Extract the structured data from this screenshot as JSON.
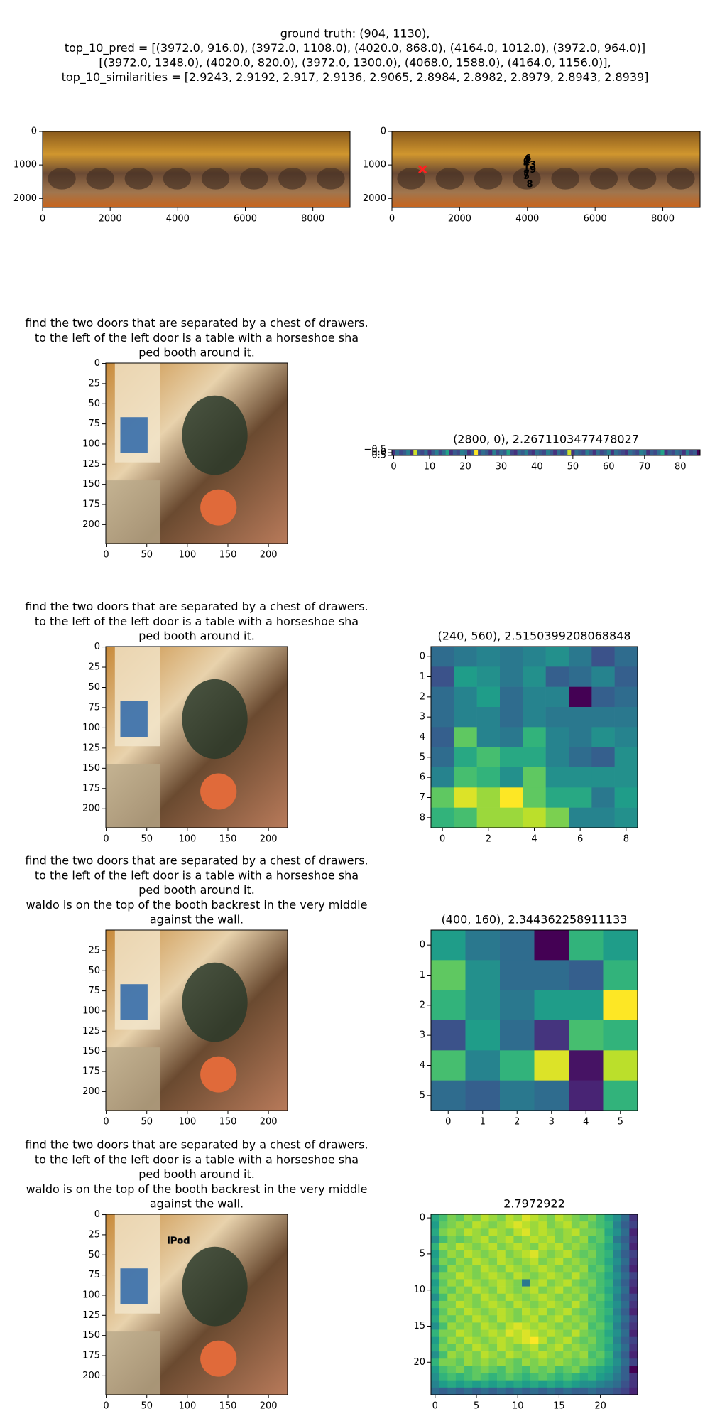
{
  "figure": {
    "title_lines": [
      "ground truth: (904, 1130),",
      "top_10_pred = [(3972.0, 916.0), (3972.0, 1108.0), (4020.0, 868.0), (4164.0, 1012.0), (3972.0, 964.0)]",
      "[(3972.0, 1348.0), (4020.0, 820.0), (3972.0, 1300.0), (4068.0, 1588.0), (4164.0, 1156.0)],",
      "top_10_similarities = [2.9243, 2.9192, 2.917, 2.9136, 2.9065, 2.8984, 2.8982, 2.8979, 2.8943, 2.8939]"
    ]
  },
  "chart_data": [
    {
      "type": "image",
      "xlim": [
        0,
        9100
      ],
      "ylim": [
        2270,
        0
      ],
      "xticks": [
        0,
        2000,
        4000,
        6000,
        8000
      ],
      "yticks": [
        0,
        1000,
        2000
      ]
    },
    {
      "type": "image",
      "xlim": [
        0,
        9100
      ],
      "ylim": [
        2270,
        0
      ],
      "xticks": [
        0,
        2000,
        4000,
        6000,
        8000
      ],
      "yticks": [
        0,
        1000,
        2000
      ],
      "points": {
        "x": [
          3972,
          3972,
          4020,
          4164,
          3972,
          3972,
          4020,
          3972,
          4068,
          4164
        ],
        "y": [
          916,
          1108,
          868,
          1012,
          964,
          1348,
          820,
          1300,
          1588,
          1156
        ],
        "labels": [
          "0",
          "1",
          "2",
          "3",
          "4",
          "5",
          "6",
          "7",
          "8",
          "9"
        ],
        "colors": [
          "#ff3030",
          "#ff9900",
          "#3060ff",
          "#00c0ff",
          "#30ff90",
          "#ff8000",
          "#40ffff",
          "#c8ff00",
          "#ff40c0",
          "#00e0ff"
        ]
      },
      "ground_truth": {
        "x": 904,
        "y": 1130,
        "color": "#ff2020"
      }
    },
    {
      "type": "image",
      "title_lines": [
        "find the two doors that are separated by a chest of drawers.",
        "to the left of the left door is a table with a horseshoe sha",
        "ped booth around it."
      ],
      "xlim": [
        -0.5,
        223.5
      ],
      "ylim": [
        223.5,
        -0.5
      ],
      "xticks": [
        0,
        50,
        100,
        150,
        200
      ],
      "yticks": [
        0,
        25,
        50,
        75,
        100,
        125,
        150,
        175,
        200
      ]
    },
    {
      "type": "heatmap",
      "cmap": "viridis",
      "title_lines": [
        "(2800, 0), 2.2671103477478027"
      ],
      "xlim": [
        -0.5,
        85.5
      ],
      "ylim": [
        0.5,
        -0.5
      ],
      "xticks": [
        0,
        10,
        20,
        30,
        40,
        50,
        60,
        70,
        80
      ],
      "yticks": [
        {
          "value": -0.5,
          "label": "−0.5"
        },
        {
          "value": 0,
          "label": "0.0"
        },
        0.5
      ],
      "values": [
        [
          0.3,
          0.45,
          0.35,
          0.4,
          0.5,
          0.3,
          0.85,
          0.4,
          0.35,
          0.45,
          0.3,
          0.4,
          0.5,
          0.35,
          0.45,
          0.6,
          0.3,
          0.4,
          0.35,
          0.5,
          0.45,
          0.3,
          0.4,
          0.9,
          0.35,
          0.45,
          0.4,
          0.3,
          0.5,
          0.35,
          0.45,
          0.4,
          0.6,
          0.35,
          0.3,
          0.45,
          0.4,
          0.5,
          0.35,
          0.3,
          0.45,
          0.4,
          0.35,
          0.5,
          0.4,
          0.3,
          0.45,
          0.35,
          0.4,
          0.85,
          0.3,
          0.45,
          0.4,
          0.35,
          0.5,
          0.4,
          0.3,
          0.45,
          0.35,
          0.4,
          0.5,
          0.3,
          0.45,
          0.4,
          0.35,
          0.3,
          0.45,
          0.4,
          0.35,
          0.5,
          0.45,
          0.3,
          0.4,
          0.35,
          0.45,
          0.6,
          0.3,
          0.4,
          0.35,
          0.45,
          0.4,
          0.3,
          0.5,
          0.35,
          0.4,
          0.2
        ]
      ]
    },
    {
      "type": "image",
      "title_lines": [
        "find the two doors that are separated by a chest of drawers.",
        "to the left of the left door is a table with a horseshoe sha",
        "ped booth around it."
      ],
      "xlim": [
        -0.5,
        223.5
      ],
      "ylim": [
        223.5,
        -0.5
      ],
      "xticks": [
        0,
        50,
        100,
        150,
        200
      ],
      "yticks": [
        0,
        25,
        50,
        75,
        100,
        125,
        150,
        175,
        200
      ]
    },
    {
      "type": "heatmap",
      "cmap": "viridis",
      "title_lines": [
        "(240, 560), 2.5150399208068848"
      ],
      "xlim": [
        -0.5,
        8.5
      ],
      "ylim": [
        8.5,
        -0.5
      ],
      "xticks": [
        0,
        2,
        4,
        6,
        8
      ],
      "yticks": [
        0,
        1,
        2,
        3,
        4,
        5,
        6,
        7,
        8
      ],
      "values": [
        [
          0.35,
          0.4,
          0.45,
          0.4,
          0.45,
          0.5,
          0.4,
          0.25,
          0.35
        ],
        [
          0.25,
          0.55,
          0.5,
          0.4,
          0.5,
          0.3,
          0.35,
          0.45,
          0.3
        ],
        [
          0.35,
          0.45,
          0.55,
          0.35,
          0.45,
          0.45,
          0,
          0.3,
          0.35
        ],
        [
          0.35,
          0.45,
          0.45,
          0.35,
          0.45,
          0.4,
          0.4,
          0.4,
          0.4
        ],
        [
          0.3,
          0.75,
          0.45,
          0.4,
          0.65,
          0.45,
          0.4,
          0.5,
          0.45
        ],
        [
          0.35,
          0.6,
          0.7,
          0.6,
          0.6,
          0.45,
          0.35,
          0.3,
          0.5
        ],
        [
          0.45,
          0.7,
          0.65,
          0.5,
          0.75,
          0.5,
          0.5,
          0.5,
          0.5
        ],
        [
          0.75,
          0.95,
          0.85,
          1,
          0.75,
          0.6,
          0.6,
          0.4,
          0.55
        ],
        [
          0.65,
          0.7,
          0.85,
          0.85,
          0.9,
          0.8,
          0.45,
          0.45,
          0.5
        ]
      ]
    },
    {
      "type": "image",
      "title_lines": [
        "find the two doors that are separated by a chest of drawers.",
        "to the left of the left door is a table with a horseshoe sha",
        "ped booth around it.",
        "waldo is on the top of the booth backrest in the very middle",
        "against the wall."
      ],
      "xlim": [
        -0.5,
        223.5
      ],
      "ylim": [
        223.5,
        -0.5
      ],
      "xticks": [
        0,
        50,
        100,
        150,
        200
      ],
      "yticks": [
        25,
        50,
        75,
        100,
        125,
        150,
        175,
        200
      ]
    },
    {
      "type": "heatmap",
      "cmap": "viridis",
      "title_lines": [
        "(400, 160), 2.344362258911133"
      ],
      "xlim": [
        -0.5,
        5.5
      ],
      "ylim": [
        5.5,
        -0.5
      ],
      "xticks": [
        0,
        1,
        2,
        3,
        4,
        5
      ],
      "yticks": [
        0,
        1,
        2,
        3,
        4,
        5
      ],
      "values": [
        [
          0.55,
          0.4,
          0.35,
          0,
          0.65,
          0.55
        ],
        [
          0.75,
          0.5,
          0.35,
          0.35,
          0.3,
          0.65
        ],
        [
          0.65,
          0.5,
          0.4,
          0.55,
          0.55,
          1
        ],
        [
          0.25,
          0.55,
          0.35,
          0.15,
          0.7,
          0.65
        ],
        [
          0.7,
          0.45,
          0.65,
          0.95,
          0.05,
          0.9
        ],
        [
          0.35,
          0.3,
          0.4,
          0.35,
          0.1,
          0.65
        ]
      ]
    },
    {
      "type": "image",
      "title_lines": [
        "find the two doors that are separated by a chest of drawers.",
        "to the left of the left door is a table with a horseshoe sha",
        "ped booth around it.",
        "waldo is on the top of the booth backrest in the very middle",
        "against the wall."
      ],
      "overlay_text": "iPod",
      "xlim": [
        -0.5,
        223.5
      ],
      "ylim": [
        223.5,
        -0.5
      ],
      "xticks": [
        0,
        50,
        100,
        150,
        200
      ],
      "yticks": [
        0,
        25,
        50,
        75,
        100,
        125,
        150,
        175,
        200
      ]
    },
    {
      "type": "heatmap",
      "cmap": "viridis",
      "title_lines": [
        "2.7972922"
      ],
      "xlim": [
        -0.5,
        24.5
      ],
      "ylim": [
        24.5,
        -0.5
      ],
      "xticks": [
        0,
        5,
        10,
        15,
        20
      ],
      "yticks": [
        0,
        5,
        10,
        15,
        20
      ],
      "values": [
        [
          0.6,
          0.7,
          0.8,
          0.75,
          0.85,
          0.8,
          0.9,
          0.85,
          0.8,
          0.9,
          0.85,
          0.95,
          0.9,
          0.85,
          0.8,
          0.9,
          0.85,
          0.8,
          0.75,
          0.8,
          0.7,
          0.6,
          0.5,
          0.35,
          0.15
        ],
        [
          0.55,
          0.75,
          0.8,
          0.85,
          0.8,
          0.9,
          0.85,
          0.8,
          0.85,
          0.9,
          0.95,
          0.9,
          0.85,
          0.9,
          0.8,
          0.85,
          0.9,
          0.8,
          0.85,
          0.75,
          0.7,
          0.65,
          0.45,
          0.3,
          0.2
        ],
        [
          0.6,
          0.8,
          0.85,
          0.8,
          0.9,
          0.85,
          0.8,
          0.9,
          0.85,
          0.8,
          0.9,
          0.95,
          0.85,
          0.9,
          0.85,
          0.8,
          0.85,
          0.9,
          0.8,
          0.8,
          0.75,
          0.6,
          0.5,
          0.35,
          0.1
        ],
        [
          0.5,
          0.7,
          0.8,
          0.75,
          0.8,
          0.85,
          0.9,
          0.8,
          0.85,
          0.9,
          0.8,
          0.85,
          0.9,
          0.85,
          0.9,
          0.8,
          0.85,
          0.8,
          0.85,
          0.7,
          0.75,
          0.65,
          0.4,
          0.3,
          0.15
        ],
        [
          0.65,
          0.85,
          0.8,
          0.9,
          0.85,
          0.8,
          0.85,
          0.9,
          0.8,
          0.85,
          0.9,
          0.85,
          0.8,
          0.9,
          0.85,
          0.9,
          0.8,
          0.85,
          0.8,
          0.75,
          0.7,
          0.6,
          0.5,
          0.35,
          0.1
        ],
        [
          0.55,
          0.75,
          0.85,
          0.8,
          0.9,
          0.85,
          0.8,
          0.85,
          0.9,
          0.8,
          0.85,
          0.9,
          0.95,
          0.85,
          0.8,
          0.85,
          0.9,
          0.8,
          0.75,
          0.8,
          0.7,
          0.65,
          0.45,
          0.3,
          0.2
        ],
        [
          0.6,
          0.8,
          0.75,
          0.85,
          0.8,
          0.9,
          0.85,
          0.8,
          0.9,
          0.85,
          0.8,
          0.85,
          0.9,
          0.8,
          0.85,
          0.9,
          0.8,
          0.85,
          0.8,
          0.75,
          0.7,
          0.6,
          0.5,
          0.35,
          0.15
        ],
        [
          0.5,
          0.7,
          0.85,
          0.8,
          0.85,
          0.8,
          0.9,
          0.85,
          0.8,
          0.9,
          0.85,
          0.8,
          0.85,
          0.9,
          0.85,
          0.8,
          0.85,
          0.8,
          0.85,
          0.7,
          0.75,
          0.65,
          0.45,
          0.3,
          0.1
        ],
        [
          0.65,
          0.8,
          0.8,
          0.9,
          0.85,
          0.8,
          0.85,
          0.9,
          0.85,
          0.8,
          0.9,
          0.85,
          0.8,
          0.85,
          0.9,
          0.85,
          0.8,
          0.9,
          0.8,
          0.75,
          0.7,
          0.6,
          0.5,
          0.35,
          0.2
        ],
        [
          0.55,
          0.75,
          0.85,
          0.8,
          0.9,
          0.85,
          0.8,
          0.85,
          0.9,
          0.85,
          0.8,
          0.4,
          0.85,
          0.9,
          0.8,
          0.85,
          0.9,
          0.8,
          0.75,
          0.8,
          0.7,
          0.65,
          0.45,
          0.3,
          0.15
        ],
        [
          0.6,
          0.8,
          0.75,
          0.85,
          0.8,
          0.9,
          0.85,
          0.8,
          0.9,
          0.85,
          0.8,
          0.85,
          0.9,
          0.8,
          0.85,
          0.9,
          0.8,
          0.85,
          0.8,
          0.75,
          0.7,
          0.6,
          0.5,
          0.35,
          0.1
        ],
        [
          0.5,
          0.7,
          0.85,
          0.8,
          0.85,
          0.8,
          0.9,
          0.85,
          0.8,
          0.9,
          0.85,
          0.8,
          0.85,
          0.9,
          0.85,
          0.8,
          0.85,
          0.8,
          0.85,
          0.7,
          0.75,
          0.65,
          0.45,
          0.3,
          0.2
        ],
        [
          0.65,
          0.8,
          0.8,
          0.9,
          0.85,
          0.8,
          0.85,
          0.9,
          0.85,
          0.8,
          0.9,
          0.85,
          0.8,
          0.85,
          0.9,
          0.85,
          0.8,
          0.9,
          0.8,
          0.75,
          0.7,
          0.6,
          0.5,
          0.35,
          0.15
        ],
        [
          0.55,
          0.75,
          0.85,
          0.8,
          0.9,
          0.85,
          0.8,
          0.85,
          0.9,
          0.85,
          0.8,
          0.9,
          0.85,
          0.9,
          0.8,
          0.85,
          0.9,
          0.8,
          0.75,
          0.8,
          0.7,
          0.65,
          0.45,
          0.3,
          0.1
        ],
        [
          0.6,
          0.8,
          0.75,
          0.85,
          0.8,
          0.9,
          0.85,
          0.8,
          0.9,
          0.85,
          0.8,
          0.85,
          0.9,
          0.8,
          0.85,
          0.9,
          0.8,
          0.85,
          0.8,
          0.75,
          0.7,
          0.6,
          0.5,
          0.35,
          0.2
        ],
        [
          0.5,
          0.7,
          0.85,
          0.8,
          0.85,
          0.8,
          0.9,
          0.85,
          0.8,
          0.9,
          0.95,
          0.9,
          0.85,
          0.9,
          0.85,
          0.8,
          0.85,
          0.8,
          0.85,
          0.7,
          0.75,
          0.65,
          0.45,
          0.3,
          0.15
        ],
        [
          0.65,
          0.8,
          0.8,
          0.9,
          0.85,
          0.8,
          0.85,
          0.9,
          0.85,
          0.95,
          0.9,
          0.95,
          0.9,
          0.85,
          0.9,
          0.85,
          0.8,
          0.9,
          0.8,
          0.75,
          0.7,
          0.6,
          0.5,
          0.35,
          0.1
        ],
        [
          0.55,
          0.75,
          0.85,
          0.8,
          0.9,
          0.85,
          0.8,
          0.85,
          0.9,
          0.85,
          0.9,
          0.95,
          1,
          0.9,
          0.8,
          0.85,
          0.9,
          0.8,
          0.75,
          0.8,
          0.7,
          0.65,
          0.45,
          0.3,
          0.2
        ],
        [
          0.6,
          0.8,
          0.75,
          0.85,
          0.8,
          0.9,
          0.85,
          0.8,
          0.9,
          0.85,
          0.8,
          0.85,
          0.9,
          0.8,
          0.85,
          0.9,
          0.8,
          0.85,
          0.8,
          0.75,
          0.7,
          0.6,
          0.5,
          0.35,
          0.15
        ],
        [
          0.5,
          0.7,
          0.85,
          0.8,
          0.85,
          0.8,
          0.9,
          0.85,
          0.8,
          0.9,
          0.85,
          0.8,
          0.85,
          0.9,
          0.85,
          0.8,
          0.85,
          0.8,
          0.85,
          0.7,
          0.75,
          0.65,
          0.45,
          0.3,
          0.1
        ],
        [
          0.65,
          0.8,
          0.8,
          0.75,
          0.85,
          0.8,
          0.85,
          0.8,
          0.85,
          0.8,
          0.75,
          0.85,
          0.8,
          0.85,
          0.8,
          0.85,
          0.8,
          0.75,
          0.8,
          0.75,
          0.7,
          0.6,
          0.5,
          0.35,
          0.2
        ],
        [
          0.55,
          0.7,
          0.75,
          0.8,
          0.7,
          0.75,
          0.8,
          0.75,
          0.7,
          0.8,
          0.75,
          0.7,
          0.8,
          0.75,
          0.8,
          0.7,
          0.75,
          0.8,
          0.7,
          0.65,
          0.6,
          0.55,
          0.45,
          0.3,
          0
        ],
        [
          0.5,
          0.65,
          0.7,
          0.65,
          0.7,
          0.75,
          0.7,
          0.65,
          0.7,
          0.75,
          0.7,
          0.65,
          0.7,
          0.75,
          0.7,
          0.65,
          0.7,
          0.65,
          0.6,
          0.65,
          0.55,
          0.5,
          0.4,
          0.3,
          0.15
        ],
        [
          0.45,
          0.55,
          0.6,
          0.55,
          0.6,
          0.55,
          0.6,
          0.55,
          0.6,
          0.55,
          0.6,
          0.55,
          0.6,
          0.55,
          0.6,
          0.55,
          0.6,
          0.55,
          0.5,
          0.5,
          0.45,
          0.4,
          0.35,
          0.25,
          0.15
        ],
        [
          0.35,
          0.3,
          0.35,
          0.3,
          0.35,
          0.3,
          0.35,
          0.3,
          0.35,
          0.3,
          0.35,
          0.3,
          0.35,
          0.3,
          0.35,
          0.3,
          0.35,
          0.3,
          0.3,
          0.35,
          0.3,
          0.3,
          0.25,
          0.2,
          0.1
        ]
      ]
    }
  ]
}
